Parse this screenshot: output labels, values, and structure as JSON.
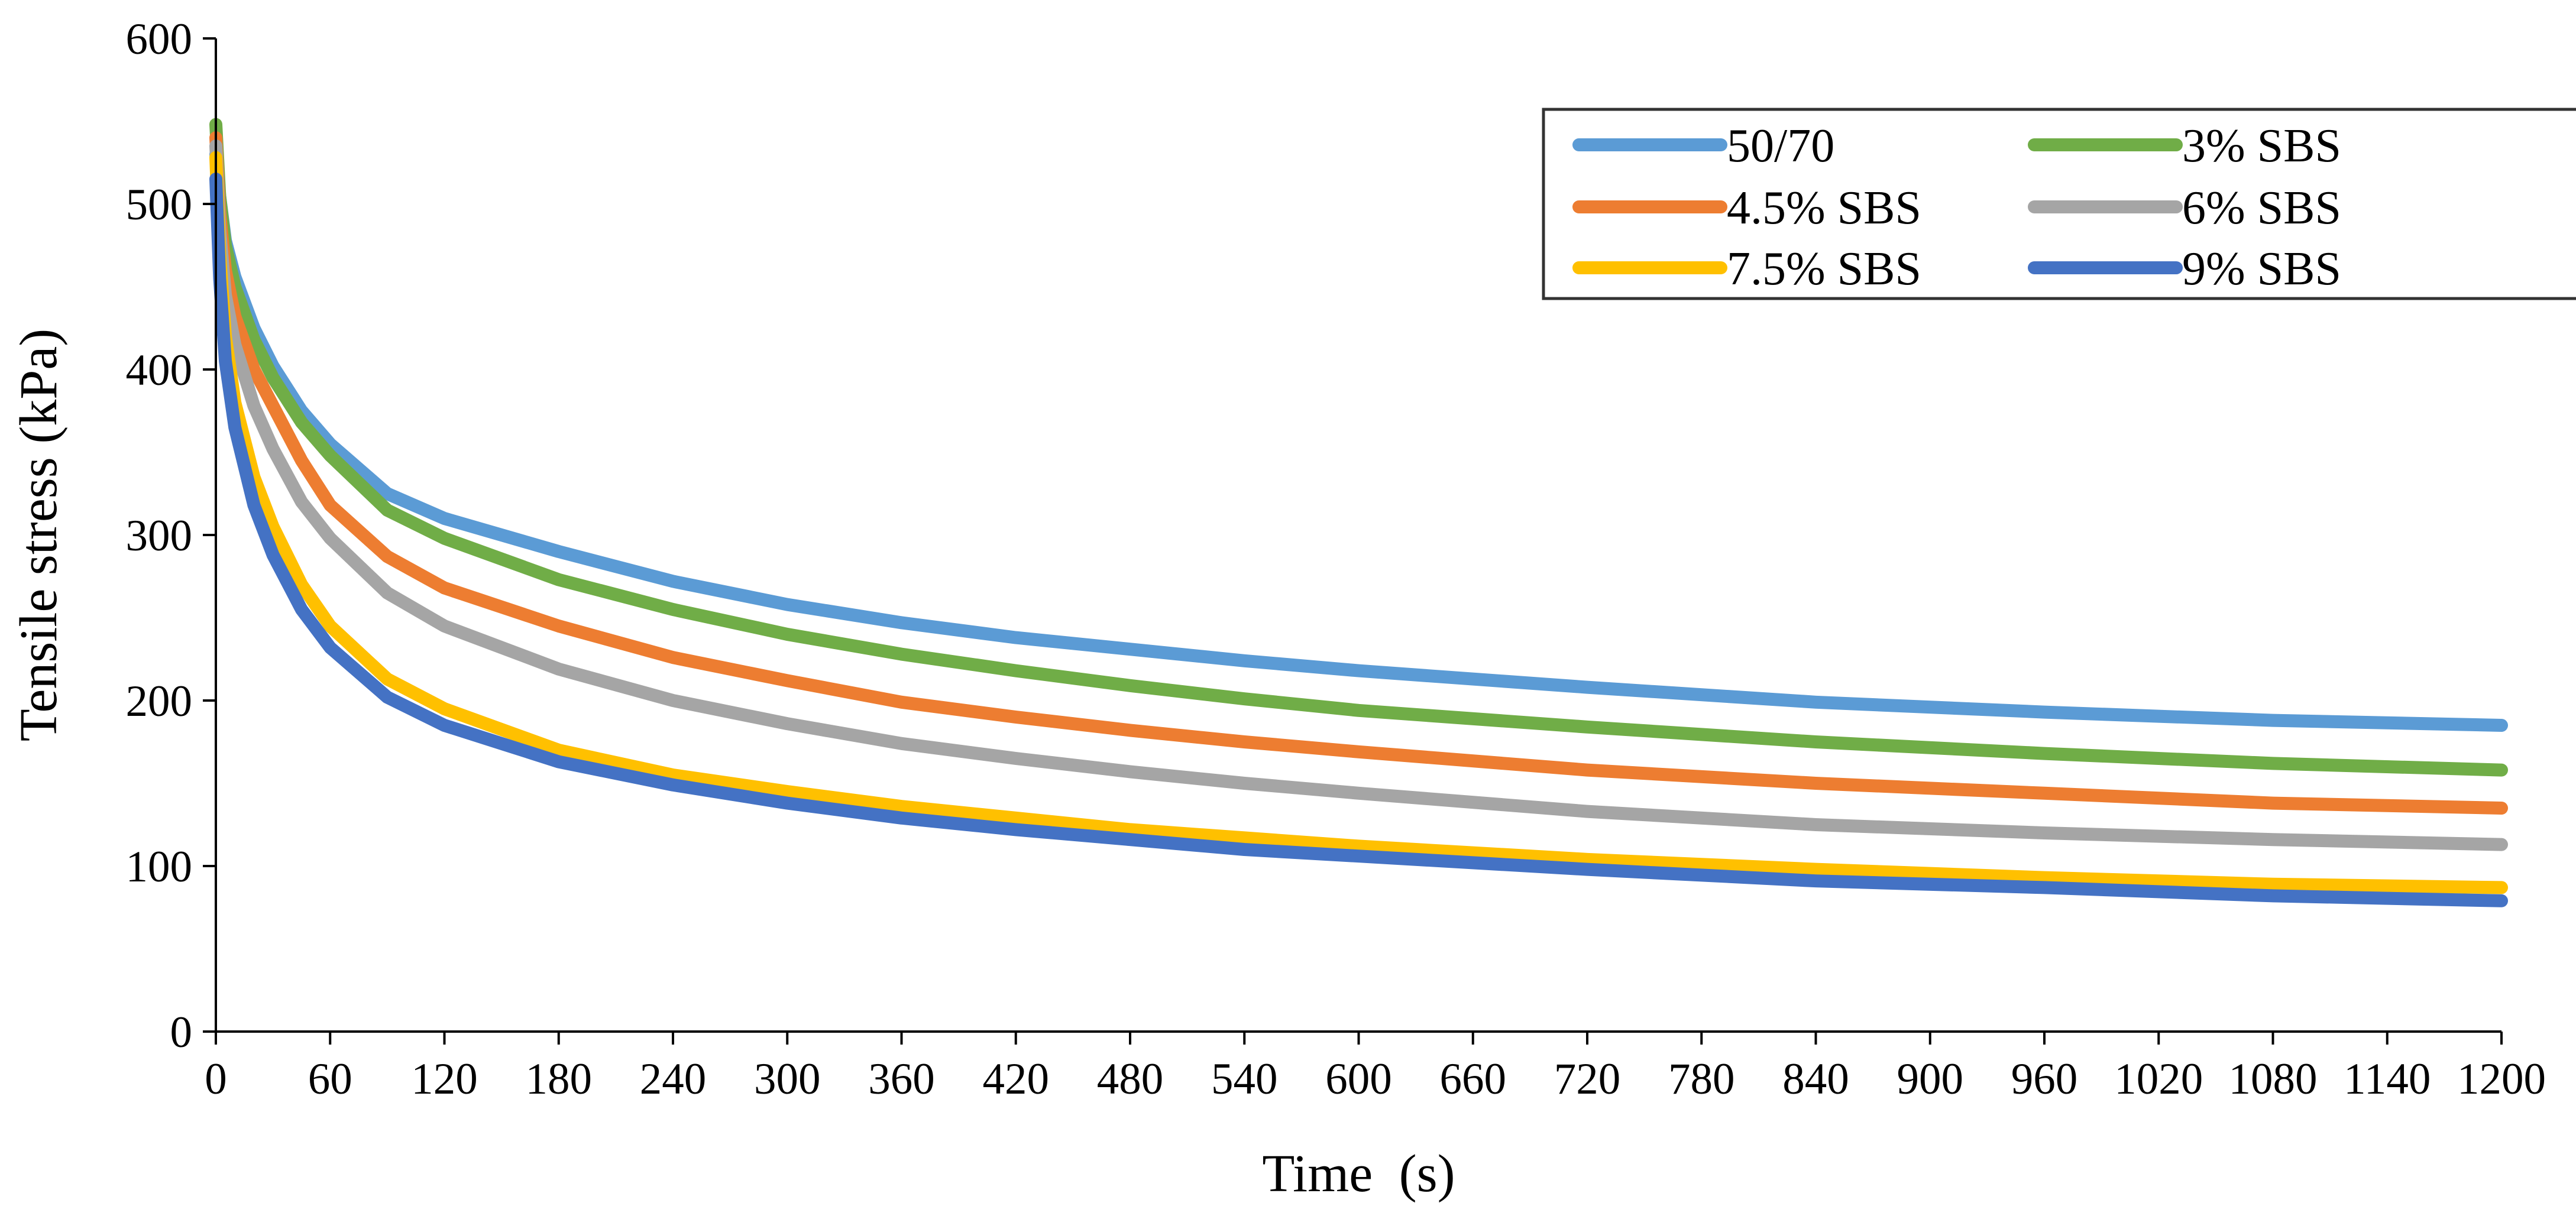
{
  "chart_data": {
    "type": "line",
    "title": "",
    "xlabel_main": "Time",
    "xlabel_unit": "(s)",
    "ylabel": "Tensile stress (kPa)",
    "xlim": [
      0,
      1200
    ],
    "ylim": [
      0,
      600
    ],
    "x_ticks": [
      0,
      60,
      120,
      180,
      240,
      300,
      360,
      420,
      480,
      540,
      600,
      660,
      720,
      780,
      840,
      900,
      960,
      1020,
      1080,
      1140,
      1200
    ],
    "y_ticks": [
      0,
      100,
      200,
      300,
      400,
      500,
      600
    ],
    "grid": false,
    "legend_position": "top-right",
    "x": [
      0,
      2,
      5,
      10,
      20,
      30,
      45,
      60,
      90,
      120,
      180,
      240,
      300,
      360,
      420,
      480,
      540,
      600,
      720,
      840,
      960,
      1080,
      1200
    ],
    "series": [
      {
        "name": "50/70",
        "color": "#5B9BD5",
        "values": [
          530,
          505,
          478,
          456,
          425,
          402,
          375,
          355,
          325,
          310,
          290,
          272,
          258,
          247,
          238,
          231,
          224,
          218,
          208,
          199,
          193,
          188,
          185
        ]
      },
      {
        "name": "3% SBS",
        "color": "#70AD47",
        "values": [
          548,
          505,
          475,
          450,
          418,
          395,
          368,
          348,
          315,
          298,
          273,
          255,
          240,
          228,
          218,
          209,
          201,
          194,
          184,
          175,
          168,
          162,
          158
        ]
      },
      {
        "name": "4.5% SBS",
        "color": "#ED7D31",
        "values": [
          540,
          495,
          460,
          432,
          400,
          378,
          345,
          318,
          287,
          268,
          245,
          226,
          212,
          199,
          190,
          182,
          175,
          169,
          158,
          150,
          144,
          138,
          135
        ]
      },
      {
        "name": "6% SBS",
        "color": "#A5A5A5",
        "values": [
          535,
          485,
          445,
          415,
          378,
          352,
          320,
          298,
          265,
          245,
          219,
          200,
          186,
          174,
          165,
          157,
          150,
          144,
          133,
          125,
          120,
          116,
          113
        ]
      },
      {
        "name": "7.5% SBS",
        "color": "#FFC000",
        "values": [
          528,
          470,
          420,
          380,
          335,
          305,
          270,
          245,
          213,
          195,
          170,
          155,
          145,
          136,
          129,
          122,
          117,
          112,
          104,
          98,
          93,
          89,
          87
        ]
      },
      {
        "name": "9% SBS",
        "color": "#4472C4",
        "values": [
          515,
          455,
          405,
          365,
          318,
          288,
          255,
          232,
          202,
          185,
          163,
          149,
          138,
          129,
          122,
          116,
          110,
          106,
          98,
          91,
          87,
          82,
          79
        ]
      }
    ]
  }
}
